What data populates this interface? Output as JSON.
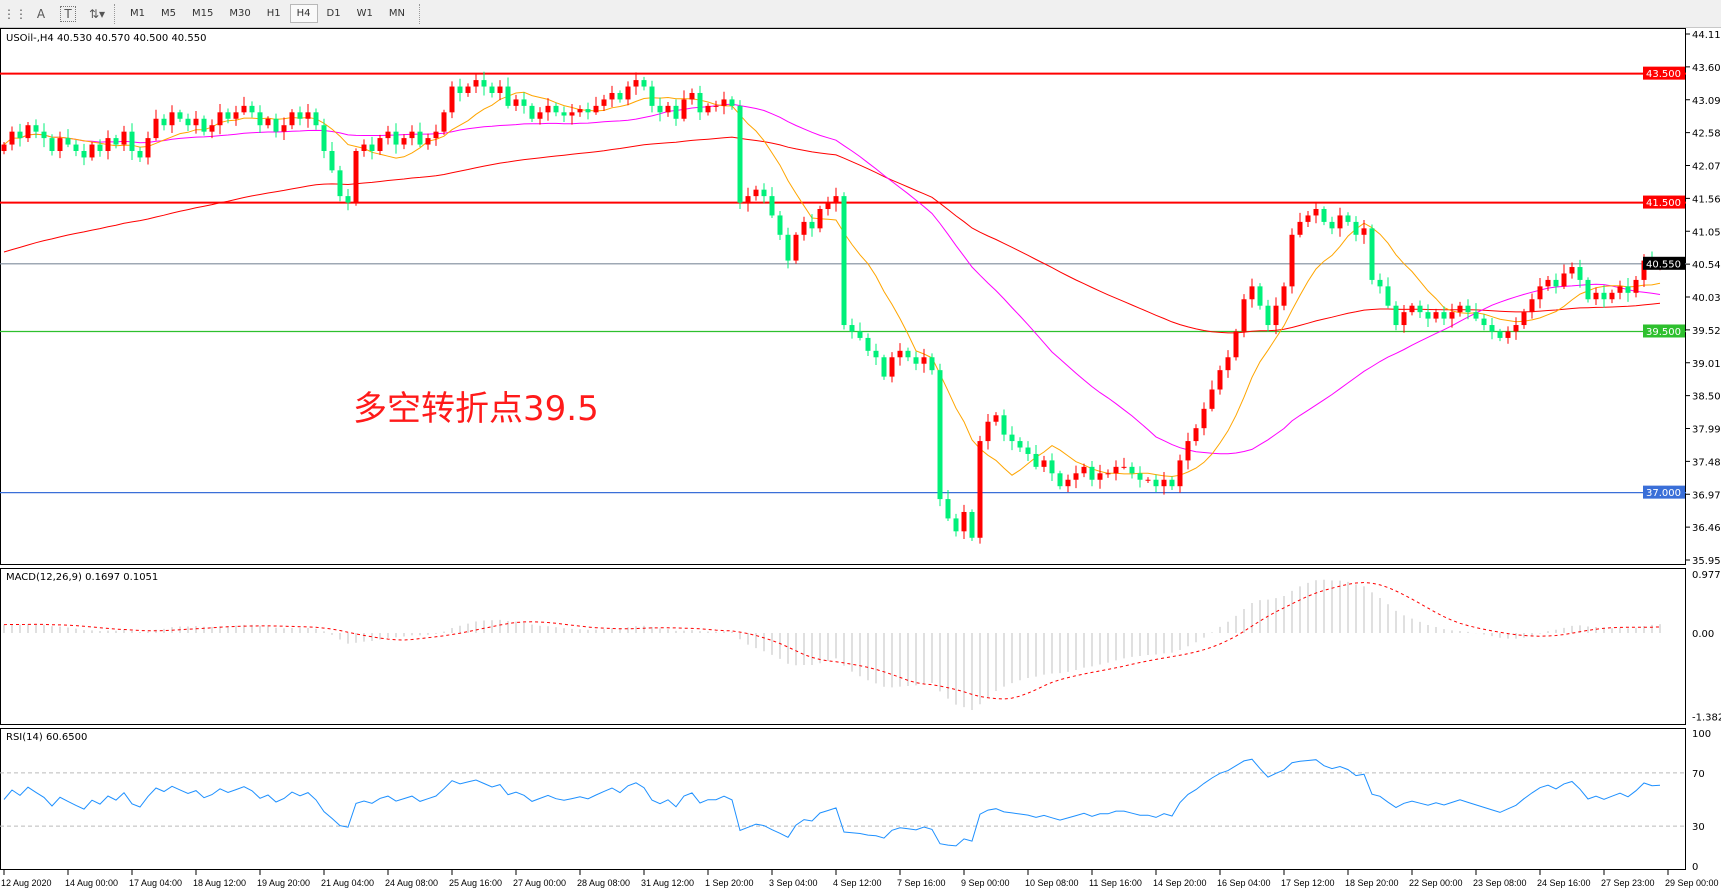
{
  "toolbar": {
    "icons": [
      "crosshair-grid-icon",
      "text-a-icon",
      "text-label-icon",
      "arrows-icon"
    ],
    "timeframes": [
      "M1",
      "M5",
      "M15",
      "M30",
      "H1",
      "H4",
      "D1",
      "W1",
      "MN"
    ],
    "active_timeframe": "H4"
  },
  "main": {
    "header": "USOil-,H4  40.530 40.570 40.500 40.550",
    "annotation": "多空转折点39.5",
    "price_ticks": [
      "44.115",
      "43.605",
      "43.095",
      "42.585",
      "42.075",
      "41.565",
      "41.055",
      "40.545",
      "40.035",
      "39.525",
      "39.015",
      "38.505",
      "37.995",
      "37.485",
      "36.975",
      "36.465",
      "35.955"
    ],
    "levels": [
      {
        "label": "43.500",
        "value": 43.5,
        "color": "#ff0000"
      },
      {
        "label": "41.500",
        "value": 41.5,
        "color": "#ff0000"
      },
      {
        "label": "40.550",
        "value": 40.55,
        "color": "#000000"
      },
      {
        "label": "39.500",
        "value": 39.5,
        "color": "#2ec02e"
      },
      {
        "label": "37.000",
        "value": 37.0,
        "color": "#3a6fd8"
      }
    ],
    "colors": {
      "up": "#ff0000",
      "down": "#00f07a",
      "ma_fast": "#ffa500",
      "ma_mid": "#ff00ff",
      "ma_slow": "#ff0000",
      "current_line": "#7f8c9c"
    }
  },
  "macd": {
    "header": "MACD(12,26,9) 0.1697 0.1051",
    "ticks": [
      "0.9779",
      "0.00",
      "-1.382"
    ]
  },
  "rsi": {
    "header": "RSI(14) 60.6500",
    "ticks": [
      "100",
      "70",
      "30",
      "0"
    ],
    "color": "#1e90ff"
  },
  "time_axis": [
    "12 Aug 2020",
    "14 Aug 00:00",
    "17 Aug 04:00",
    "18 Aug 12:00",
    "19 Aug 20:00",
    "21 Aug 04:00",
    "24 Aug 08:00",
    "25 Aug 16:00",
    "27 Aug 00:00",
    "28 Aug 08:00",
    "31 Aug 12:00",
    "1 Sep 20:00",
    "3 Sep 04:00",
    "4 Sep 12:00",
    "7 Sep 16:00",
    "9 Sep 00:00",
    "10 Sep 08:00",
    "11 Sep 16:00",
    "14 Sep 20:00",
    "16 Sep 04:00",
    "17 Sep 12:00",
    "18 Sep 20:00",
    "22 Sep 00:00",
    "23 Sep 08:00",
    "24 Sep 16:00",
    "27 Sep 23:00",
    "29 Sep 00:00"
  ],
  "chart_data": {
    "type": "candlestick",
    "symbol": "USOil-",
    "timeframe": "H4",
    "last_ohlc": {
      "open": 40.53,
      "high": 40.57,
      "low": 40.5,
      "close": 40.55
    },
    "ylim": [
      35.955,
      44.115
    ],
    "closes": [
      42.4,
      42.6,
      42.5,
      42.7,
      42.6,
      42.5,
      42.3,
      42.5,
      42.4,
      42.3,
      42.2,
      42.4,
      42.3,
      42.5,
      42.4,
      42.6,
      42.3,
      42.2,
      42.5,
      42.8,
      42.7,
      42.9,
      42.8,
      42.7,
      42.8,
      42.6,
      42.7,
      42.9,
      42.8,
      42.9,
      43.0,
      42.9,
      42.7,
      42.8,
      42.6,
      42.7,
      42.9,
      42.8,
      42.9,
      42.7,
      42.3,
      42.0,
      41.6,
      41.5,
      42.3,
      42.4,
      42.3,
      42.5,
      42.6,
      42.4,
      42.5,
      42.6,
      42.4,
      42.5,
      42.6,
      42.9,
      43.3,
      43.2,
      43.3,
      43.4,
      43.3,
      43.2,
      43.3,
      43.0,
      43.1,
      43.0,
      42.8,
      42.9,
      43.0,
      42.9,
      42.85,
      42.9,
      42.95,
      42.9,
      43.0,
      43.1,
      43.2,
      43.1,
      43.3,
      43.4,
      43.3,
      43.0,
      42.9,
      43.0,
      42.8,
      43.1,
      43.2,
      42.9,
      43.0,
      43.0,
      43.1,
      43.0,
      41.5,
      41.6,
      41.7,
      41.6,
      41.3,
      41.0,
      40.6,
      41.0,
      41.2,
      41.1,
      41.4,
      41.5,
      41.6,
      39.6,
      39.5,
      39.4,
      39.2,
      39.1,
      38.8,
      39.1,
      39.2,
      39.1,
      39.0,
      39.1,
      38.9,
      36.9,
      36.6,
      36.4,
      36.7,
      36.3,
      37.8,
      38.1,
      38.2,
      37.9,
      37.8,
      37.7,
      37.6,
      37.4,
      37.5,
      37.3,
      37.1,
      37.2,
      37.3,
      37.4,
      37.2,
      37.3,
      37.3,
      37.4,
      37.4,
      37.3,
      37.2,
      37.2,
      37.1,
      37.2,
      37.1,
      37.5,
      37.8,
      38.0,
      38.3,
      38.6,
      38.9,
      39.1,
      39.5,
      40.0,
      40.2,
      39.9,
      39.6,
      39.9,
      40.2,
      41.0,
      41.2,
      41.3,
      41.4,
      41.2,
      41.1,
      41.3,
      41.2,
      41.0,
      41.1,
      40.3,
      40.2,
      39.9,
      39.6,
      39.8,
      39.9,
      39.8,
      39.7,
      39.8,
      39.7,
      39.8,
      39.9,
      39.8,
      39.7,
      39.6,
      39.5,
      39.4,
      39.5,
      39.6,
      39.8,
      40.0,
      40.2,
      40.3,
      40.2,
      40.4,
      40.5,
      40.3,
      40.0,
      40.1,
      40.0,
      40.1,
      40.2,
      40.1,
      40.3,
      40.6,
      40.53,
      40.55
    ],
    "macd_range": [
      -1.382,
      0.9779
    ],
    "rsi_range": [
      0,
      100
    ],
    "rsi_levels": [
      70,
      30
    ]
  }
}
